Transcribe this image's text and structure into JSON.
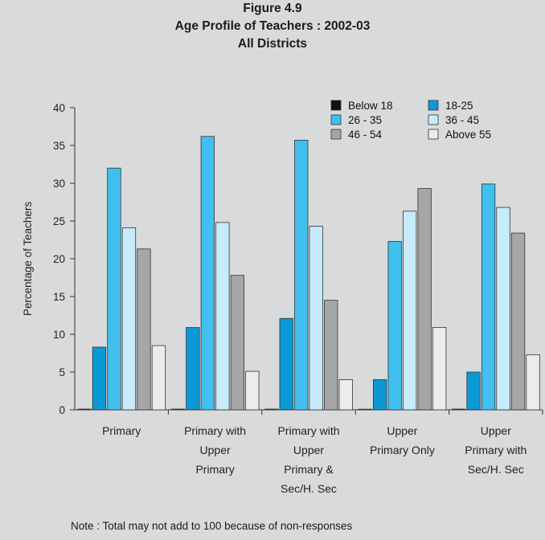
{
  "figure": {
    "number": "Figure 4.9",
    "title": "Age Profile of Teachers : 2002-03",
    "subtitle": "All Districts",
    "note": "Note : Total may not add to 100 because of non-responses"
  },
  "chart_data": {
    "type": "bar",
    "title": "Age Profile of Teachers : 2002-03",
    "subtitle": "All Districts",
    "ylabel": "Percentage of Teachers",
    "xlabel": "",
    "ylim": [
      0,
      40
    ],
    "yticks": [
      0,
      5,
      10,
      15,
      20,
      25,
      30,
      35,
      40
    ],
    "grid": false,
    "legend_position": "top-right",
    "categories": [
      [
        "Primary"
      ],
      [
        "Primary with",
        "Upper",
        "Primary"
      ],
      [
        "Primary with",
        "Upper",
        "Primary &",
        "Sec/H. Sec"
      ],
      [
        "Upper",
        "Primary Only"
      ],
      [
        "Upper",
        "Primary with",
        "Sec/H. Sec"
      ]
    ],
    "series": [
      {
        "name": "Below 18",
        "color": "#111111",
        "values": [
          0.1,
          0.1,
          0.1,
          0.0,
          0.1
        ]
      },
      {
        "name": "18-25",
        "color": "#0a99d6",
        "values": [
          8.3,
          10.9,
          12.1,
          4.0,
          5.0
        ]
      },
      {
        "name": "26 - 35",
        "color": "#41c0ee",
        "values": [
          32.0,
          36.2,
          35.7,
          22.3,
          29.9
        ]
      },
      {
        "name": "36 - 45",
        "color": "#c7ebfa",
        "values": [
          24.1,
          24.8,
          24.3,
          26.3,
          26.8
        ]
      },
      {
        "name": "46 - 54",
        "color": "#a5a6a8",
        "values": [
          21.3,
          17.8,
          14.5,
          29.3,
          23.4
        ]
      },
      {
        "name": "Above 55",
        "color": "#ececec",
        "values": [
          8.5,
          5.1,
          4.0,
          10.9,
          7.3
        ]
      }
    ]
  }
}
